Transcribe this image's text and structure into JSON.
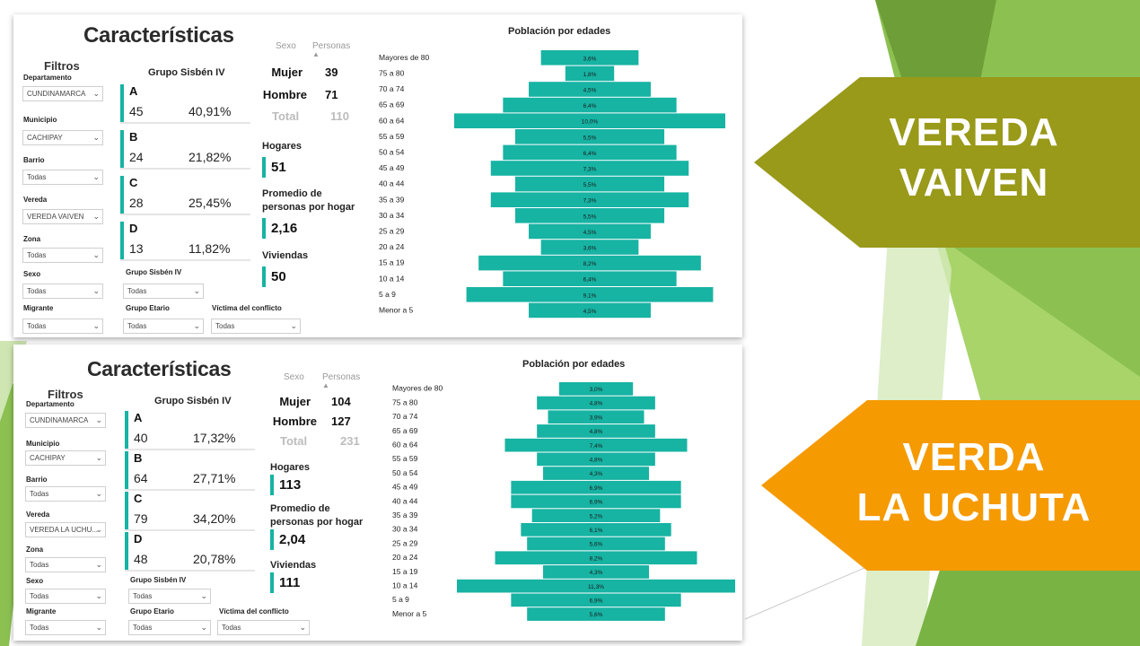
{
  "arrows": {
    "top": {
      "line1": "VEREDA",
      "line2": "VAIVEN",
      "color": "#99991a"
    },
    "bottom": {
      "line1": "VERDA",
      "line2": "LA UCHUTA",
      "color": "#f59a00"
    }
  },
  "colors": {
    "accent": "#17b3a3",
    "green_dark": "#6aa53a",
    "green_light": "#b4d98a"
  },
  "dashboards": [
    {
      "title": "Características",
      "filters": {
        "title": "Filtros",
        "departamento": {
          "label": "Departamento",
          "value": "CUNDINAMARCA"
        },
        "municipio": {
          "label": "Municipio",
          "value": "CACHIPAY"
        },
        "barrio": {
          "label": "Barrio",
          "value": "Todas"
        },
        "vereda": {
          "label": "Vereda",
          "value": "VEREDA VAIVEN"
        },
        "zona": {
          "label": "Zona",
          "value": "Todas"
        },
        "sexo": {
          "label": "Sexo",
          "value": "Todas"
        },
        "migrante": {
          "label": "Migrante",
          "value": "Todas"
        },
        "grupo_sisben": {
          "label": "Grupo Sisbén IV",
          "value": "Todas"
        },
        "grupo_etario": {
          "label": "Grupo Etario",
          "value": "Todas"
        },
        "victima": {
          "label": "Víctima del conflicto",
          "value": "Todas"
        }
      },
      "sisben": {
        "title": "Grupo Sisbén IV",
        "groups": [
          {
            "letter": "A",
            "count": "45",
            "pct": "40,91%"
          },
          {
            "letter": "B",
            "count": "24",
            "pct": "21,82%"
          },
          {
            "letter": "C",
            "count": "28",
            "pct": "25,45%"
          },
          {
            "letter": "D",
            "count": "13",
            "pct": "11,82%"
          }
        ]
      },
      "sex_table": {
        "col_sexo": "Sexo",
        "col_personas": "Personas",
        "mujer_label": "Mujer",
        "mujer": "39",
        "hombre_label": "Hombre",
        "hombre": "71",
        "total_label": "Total",
        "total": "110"
      },
      "kpis": {
        "hogares_label": "Hogares",
        "hogares": "51",
        "promedio_label_1": "Promedio de",
        "promedio_label_2": "personas por hogar",
        "promedio": "2,16",
        "viviendas_label": "Viviendas",
        "viviendas": "50"
      },
      "chart_data": {
        "type": "bar",
        "title": "Población por edades",
        "orientation": "horizontal-centered",
        "categories": [
          "Mayores de 80",
          "75 a 80",
          "70 a 74",
          "65 a 69",
          "60 a 64",
          "55 a 59",
          "50 a 54",
          "45 a 49",
          "40 a 44",
          "35 a 39",
          "30 a 34",
          "25 a 29",
          "20 a 24",
          "15 a 19",
          "10 a 14",
          "5 a 9",
          "Menor a 5"
        ],
        "values": [
          3.6,
          1.8,
          4.5,
          6.4,
          10.0,
          5.5,
          6.4,
          7.3,
          5.5,
          7.3,
          5.5,
          4.5,
          3.6,
          8.2,
          6.4,
          9.1,
          4.5
        ],
        "labels": [
          "3,6%",
          "1,8%",
          "4,5%",
          "6,4%",
          "10,0%",
          "5,5%",
          "6,4%",
          "7,3%",
          "5,5%",
          "7,3%",
          "5,5%",
          "4,5%",
          "3,6%",
          "8,2%",
          "6,4%",
          "9,1%",
          "4,5%"
        ],
        "max": 10.0,
        "color": "#17b3a3"
      }
    },
    {
      "title": "Características",
      "filters": {
        "title": "Filtros",
        "departamento": {
          "label": "Departamento",
          "value": "CUNDINAMARCA"
        },
        "municipio": {
          "label": "Municipio",
          "value": "CACHIPAY"
        },
        "barrio": {
          "label": "Barrio",
          "value": "Todas"
        },
        "vereda": {
          "label": "Vereda",
          "value": "VEREDA LA UCHU..."
        },
        "zona": {
          "label": "Zona",
          "value": "Todas"
        },
        "sexo": {
          "label": "Sexo",
          "value": "Todas"
        },
        "migrante": {
          "label": "Migrante",
          "value": "Todas"
        },
        "grupo_sisben": {
          "label": "Grupo Sisbén IV",
          "value": "Todas"
        },
        "grupo_etario": {
          "label": "Grupo Etario",
          "value": "Todas"
        },
        "victima": {
          "label": "Víctima del conflicto",
          "value": "Todas"
        }
      },
      "sisben": {
        "title": "Grupo Sisbén IV",
        "groups": [
          {
            "letter": "A",
            "count": "40",
            "pct": "17,32%"
          },
          {
            "letter": "B",
            "count": "64",
            "pct": "27,71%"
          },
          {
            "letter": "C",
            "count": "79",
            "pct": "34,20%"
          },
          {
            "letter": "D",
            "count": "48",
            "pct": "20,78%"
          }
        ]
      },
      "sex_table": {
        "col_sexo": "Sexo",
        "col_personas": "Personas",
        "mujer_label": "Mujer",
        "mujer": "104",
        "hombre_label": "Hombre",
        "hombre": "127",
        "total_label": "Total",
        "total": "231"
      },
      "kpis": {
        "hogares_label": "Hogares",
        "hogares": "113",
        "promedio_label_1": "Promedio de",
        "promedio_label_2": "personas por hogar",
        "promedio": "2,04",
        "viviendas_label": "Viviendas",
        "viviendas": "111"
      },
      "chart_data": {
        "type": "bar",
        "title": "Población por edades",
        "orientation": "horizontal-centered",
        "categories": [
          "Mayores de 80",
          "75 a 80",
          "70 a 74",
          "65 a 69",
          "60 a 64",
          "55 a 59",
          "50 a 54",
          "45 a 49",
          "40 a 44",
          "35 a 39",
          "30 a 34",
          "25 a 29",
          "20 a 24",
          "15 a 19",
          "10 a 14",
          "5 a 9",
          "Menor a 5"
        ],
        "values": [
          3.0,
          4.8,
          3.9,
          4.8,
          7.4,
          4.8,
          4.3,
          6.9,
          6.9,
          5.2,
          6.1,
          5.6,
          8.2,
          4.3,
          11.3,
          6.9,
          5.6
        ],
        "labels": [
          "3,0%",
          "4,8%",
          "3,9%",
          "4,8%",
          "7,4%",
          "4,8%",
          "4,3%",
          "6,9%",
          "6,9%",
          "5,2%",
          "6,1%",
          "5,6%",
          "8,2%",
          "4,3%",
          "11,3%",
          "6,9%",
          "5,6%"
        ],
        "max": 11.3,
        "color": "#17b3a3"
      }
    }
  ]
}
